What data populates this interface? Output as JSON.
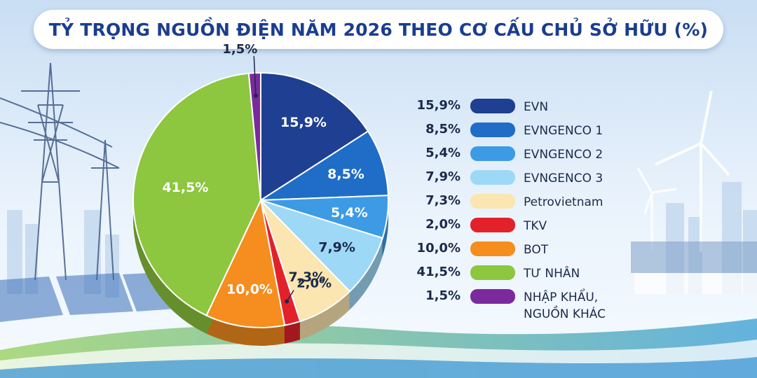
{
  "title": "TỶ TRỌNG NGUỒN ĐIỆN NĂM 2026 THEO CƠ CẤU CHỦ SỞ HỮU (%)",
  "chart_data": {
    "type": "pie",
    "title": "TỶ TRỌNG NGUỒN ĐIỆN NĂM 2026 THEO CƠ CẤU CHỦ SỞ HỮU (%)",
    "legend_placement": "right",
    "slices": [
      {
        "label": "EVN",
        "value": 15.9,
        "display": "15,9%",
        "color": "#1e3f92"
      },
      {
        "label": "EVNGENCO 1",
        "value": 8.5,
        "display": "8,5%",
        "color": "#1f6dc6"
      },
      {
        "label": "EVNGENCO 2",
        "value": 5.4,
        "display": "5,4%",
        "color": "#3d9be6"
      },
      {
        "label": "EVNGENCO 3",
        "value": 7.9,
        "display": "7,9%",
        "color": "#9ed8f7"
      },
      {
        "label": "Petrovietnam",
        "value": 7.3,
        "display": "7,3%",
        "color": "#fbe5b0"
      },
      {
        "label": "TKV",
        "value": 2.0,
        "display": "2,0%",
        "color": "#e3212b"
      },
      {
        "label": "BOT",
        "value": 10.0,
        "display": "10,0%",
        "color": "#f68d1f"
      },
      {
        "label": "TƯ NHÂN",
        "value": 41.5,
        "display": "41,5%",
        "color": "#8dc63f"
      },
      {
        "label": "NHẬP KHẨU, NGUỒN KHÁC",
        "value": 1.5,
        "display": "1,5%",
        "color": "#7b2a9e"
      }
    ]
  }
}
